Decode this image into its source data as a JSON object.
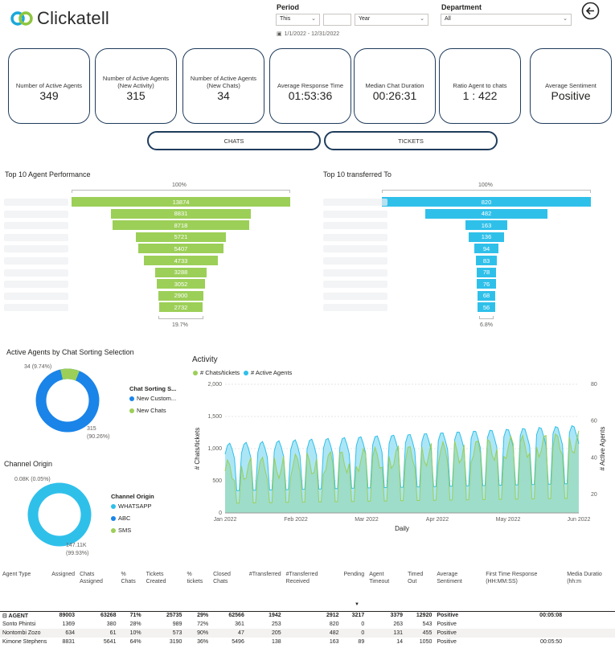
{
  "brand": {
    "name": "Clickatell",
    "logo_colors": [
      "#1ba8d8",
      "#8dc63f"
    ]
  },
  "filters": {
    "period_label": "Period",
    "period_mode": "This",
    "period_count": "",
    "period_unit": "Year",
    "date_range": "1/1/2022 - 12/31/2022",
    "department_label": "Department",
    "department_value": "All"
  },
  "kpis": [
    {
      "label": "Number of Active Agents",
      "value": "349"
    },
    {
      "label": "Number of Active Agents (New Activity)",
      "value": "315"
    },
    {
      "label": "Number of Active Agents (New Chats)",
      "value": "34"
    },
    {
      "label": "Average Response Time",
      "value": "01:53:36"
    },
    {
      "label": "Median Chat Duration",
      "value": "00:26:31"
    },
    {
      "label": "Ratio Agent to chats",
      "value": "1 : 422"
    },
    {
      "label": "Average Sentiment",
      "value": "Positive"
    }
  ],
  "tabs": {
    "chats": "CHATS",
    "tickets": "TICKETS"
  },
  "agent_funnel": {
    "title": "Top 10 Agent Performance",
    "top_pct": "100%",
    "bottom_pct": "19.7%",
    "values": [
      "13874",
      "8831",
      "8718",
      "5721",
      "5407",
      "4733",
      "3288",
      "3052",
      "2900",
      "2732"
    ],
    "color": "#9ccf58"
  },
  "transfer_funnel": {
    "title": "Top 10 transferred To",
    "top_pct": "100%",
    "bottom_pct": "6.8%",
    "values": [
      "820",
      "482",
      "163",
      "136",
      "94",
      "83",
      "78",
      "76",
      "68",
      "56"
    ],
    "color": "#2fc0ea"
  },
  "sorting_donut": {
    "title": "Active Agents by Chat Sorting Selection",
    "small_label": "34 (9.74%)",
    "big_label_value": "315",
    "big_label_pct": "(90.26%)",
    "legend_title": "Chat Sorting S...",
    "legend": [
      {
        "name": "New Custom...",
        "color": "#1a84e8"
      },
      {
        "name": "New Chats",
        "color": "#9ccf58"
      }
    ]
  },
  "origin_donut": {
    "title": "Channel Origin",
    "small_label": "0.08K (0.05%)",
    "big_label_value": "147.11K",
    "big_label_pct": "(99.93%)",
    "legend_title": "Channel Origin",
    "legend": [
      {
        "name": "WHATSAPP",
        "color": "#2fc0ea"
      },
      {
        "name": "ABC",
        "color": "#1a84e8"
      },
      {
        "name": "SMS",
        "color": "#9ccf58"
      }
    ]
  },
  "chart_data": {
    "type": "area",
    "title": "Activity",
    "xlabel": "Daily",
    "ylabel": "# Chats/tickets",
    "y2label": "# Active Agents",
    "x_ticks": [
      "Jan 2022",
      "Feb 2022",
      "Mar 2022",
      "Apr 2022",
      "May 2022",
      "Jun 2022"
    ],
    "y_ticks": [
      "0",
      "500",
      "1,000",
      "1,500",
      "2,000"
    ],
    "y2_ticks": [
      "20",
      "40",
      "60",
      "80"
    ],
    "ylim": [
      0,
      2000
    ],
    "y2lim": [
      10,
      80
    ],
    "series": [
      {
        "name": "# Chats/tickets",
        "color": "#9ccf58",
        "axis": "left"
      },
      {
        "name": "# Active Agents",
        "color": "#2fc0ea",
        "axis": "right"
      }
    ]
  },
  "table": {
    "headers": [
      "Agent Type",
      "Assigned",
      "Chats Assigned",
      "% Chats",
      "Tickets Created",
      "% tickets",
      "Closed Chats",
      "#Transferred",
      "#Transferred Received",
      "Pending",
      "Agent Timeout",
      "Timed Out",
      "Average Sentiment",
      "First Time Response (HH:MM:SS)",
      "Media Duratio (hh:m"
    ],
    "rows": [
      {
        "type": "total",
        "cells": [
          "⊟ AGENT",
          "89003",
          "63268",
          "71%",
          "25735",
          "29%",
          "62566",
          "1942",
          "2912",
          "3217",
          "3379",
          "12920",
          "Positive",
          "00:05:08",
          ""
        ]
      },
      {
        "type": "row",
        "cells": [
          "Sonto Phintsi",
          "1369",
          "380",
          "28%",
          "989",
          "72%",
          "361",
          "253",
          "820",
          "0",
          "263",
          "543",
          "Positive",
          "",
          ""
        ]
      },
      {
        "type": "alt",
        "cells": [
          "Nontombi Zozo",
          "634",
          "61",
          "10%",
          "573",
          "90%",
          "47",
          "205",
          "482",
          "0",
          "131",
          "455",
          "Positive",
          "",
          ""
        ]
      },
      {
        "type": "row",
        "cells": [
          "Kimone Stephens",
          "8831",
          "5641",
          "64%",
          "3190",
          "36%",
          "5496",
          "138",
          "163",
          "89",
          "14",
          "1050",
          "Positive",
          "00:05:50",
          ""
        ]
      }
    ]
  }
}
